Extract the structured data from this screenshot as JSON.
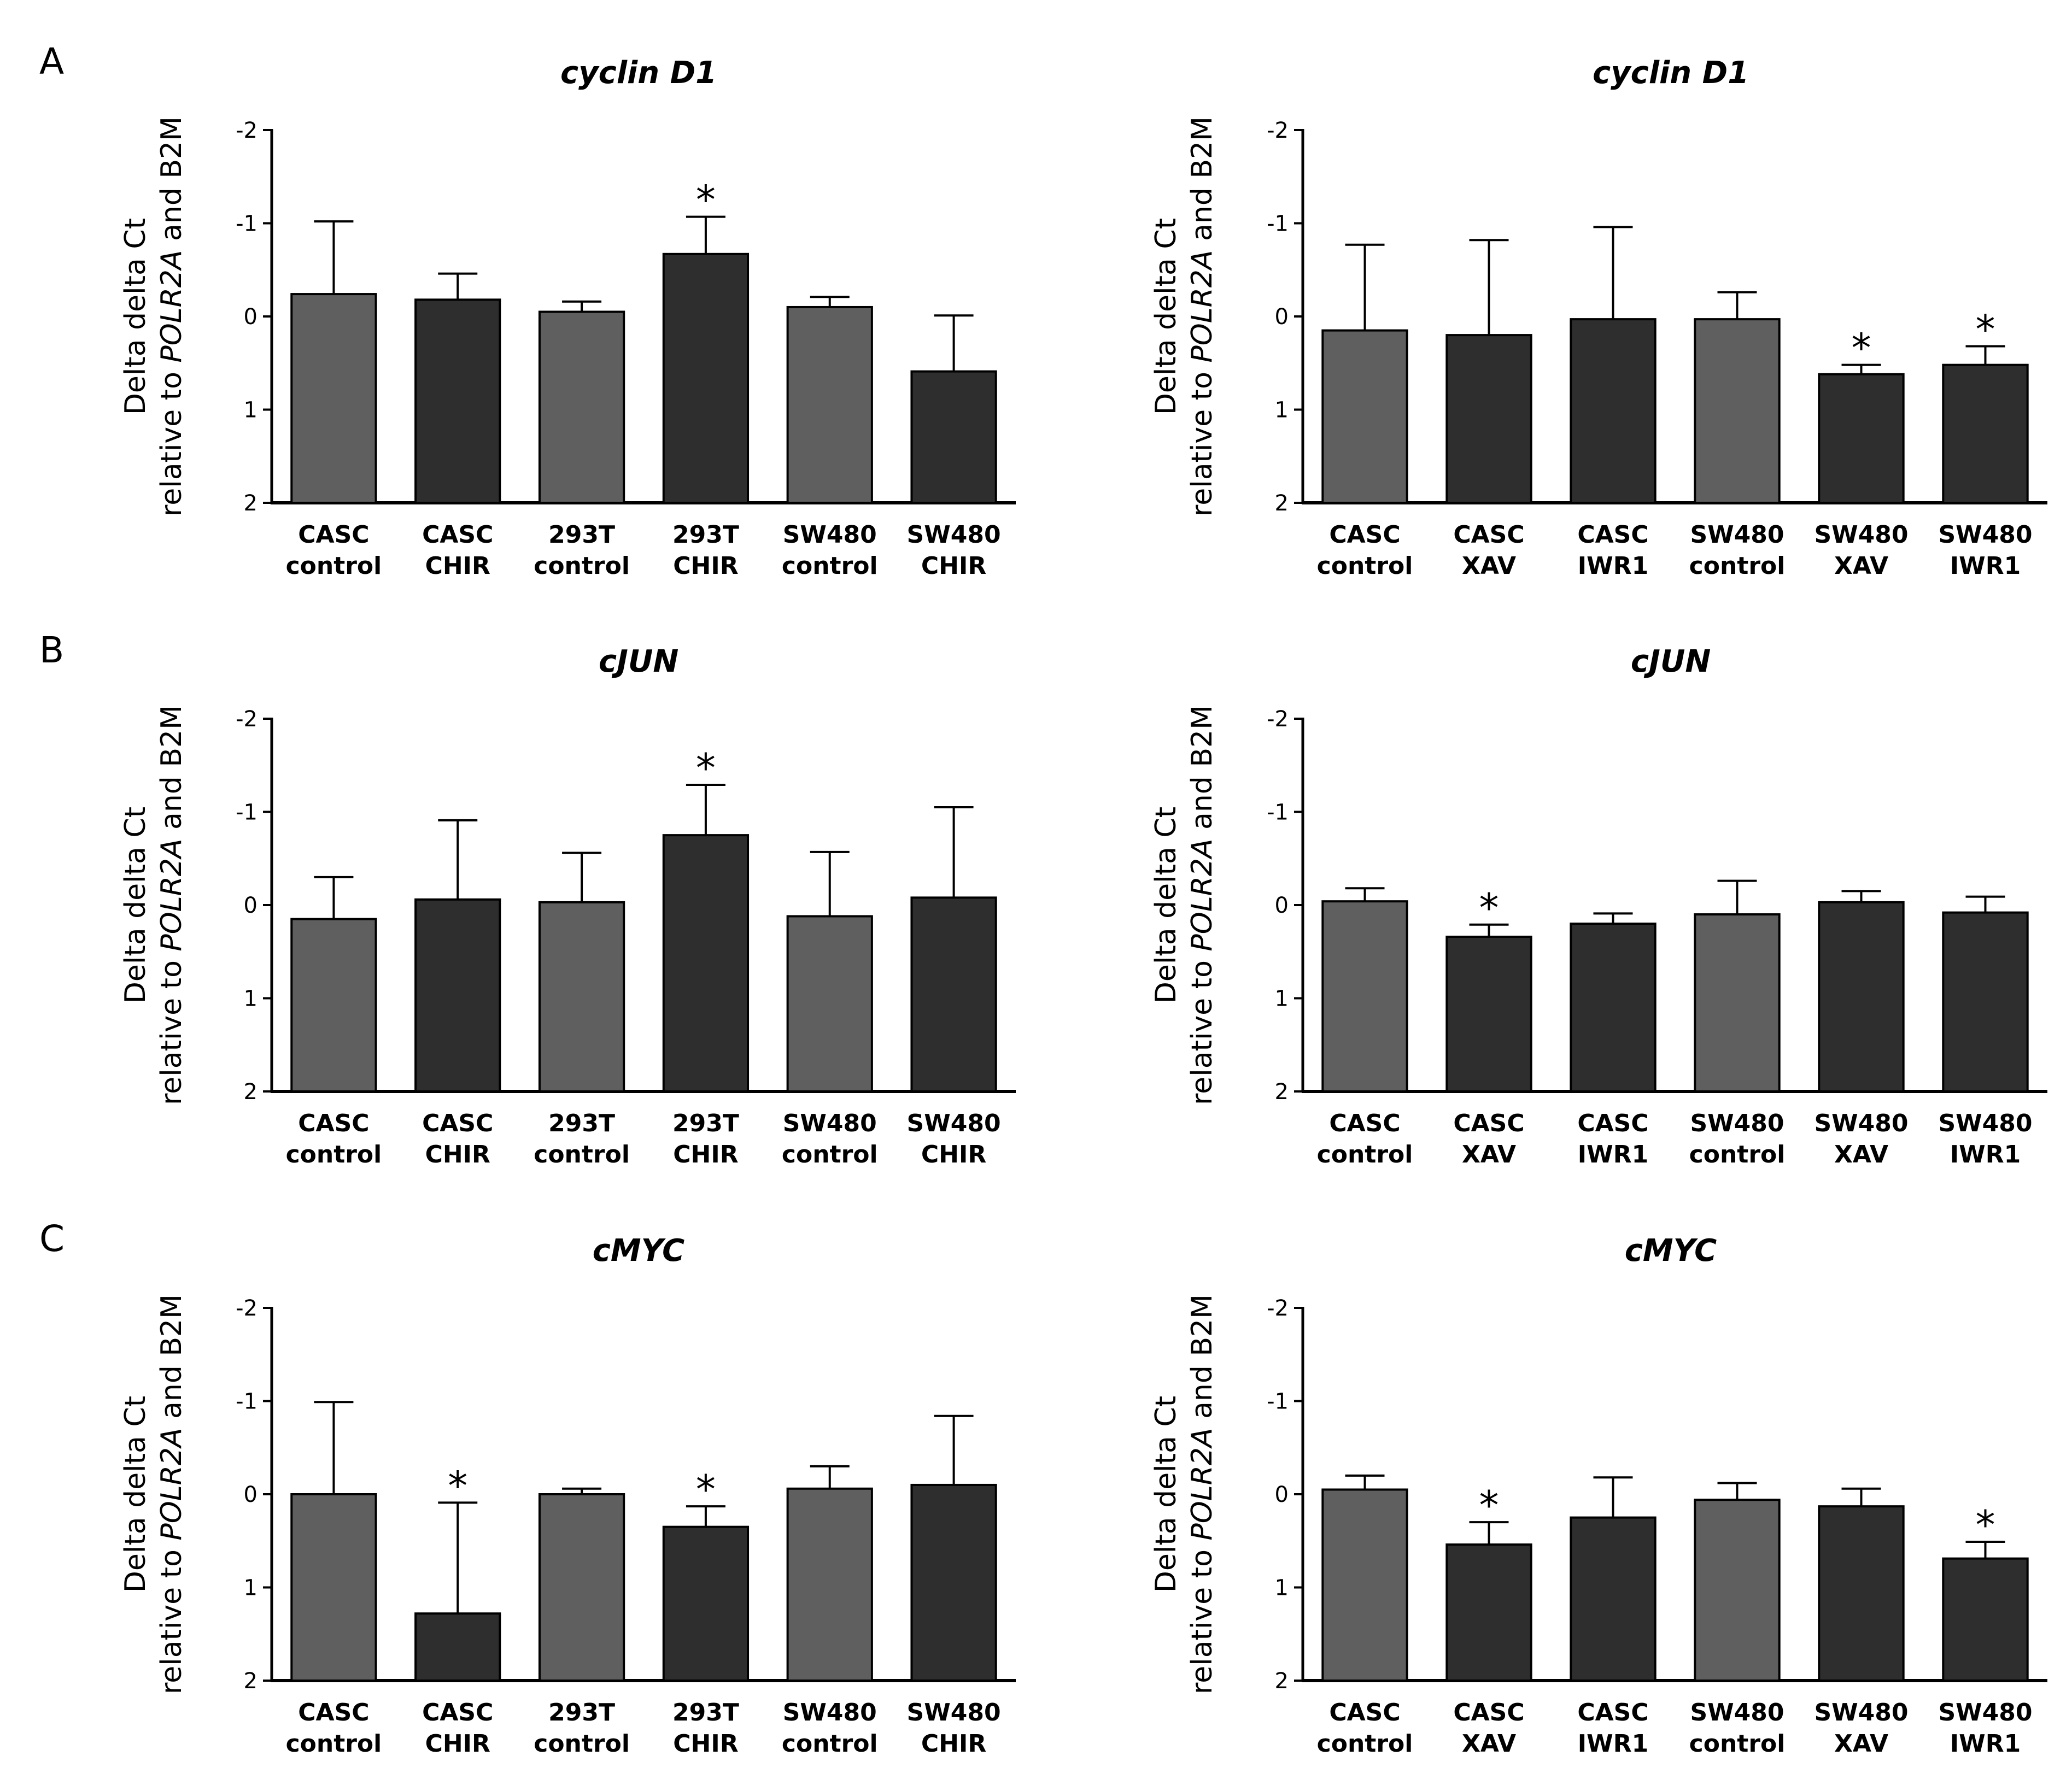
{
  "panel_letters": [
    "A",
    "B",
    "C"
  ],
  "ylabel_parts": [
    "Delta delta Ct",
    "relative to ",
    "POLR2A",
    " and B2M"
  ],
  "colors": {
    "control": "#5f5f5f",
    "treated": "#2e2e2e",
    "axis": "#000000",
    "edge": "#000000"
  },
  "chart_data": [
    {
      "type": "bar",
      "title": "cyclin D1",
      "ylim": [
        2,
        -2
      ],
      "yticks": [
        -2,
        -1,
        0,
        1,
        2
      ],
      "inverted_y": true,
      "categories": [
        [
          "CASC",
          "control"
        ],
        [
          "CASC",
          "CHIR"
        ],
        [
          "293T",
          "control"
        ],
        [
          "293T",
          "CHIR"
        ],
        [
          "SW480",
          "control"
        ],
        [
          "SW480",
          "CHIR"
        ]
      ],
      "values": [
        -0.24,
        -0.18,
        -0.05,
        -0.67,
        -0.1,
        0.59
      ],
      "errors": [
        0.78,
        0.28,
        0.11,
        0.4,
        0.11,
        0.6
      ],
      "significant": [
        false,
        false,
        false,
        true,
        false,
        false
      ],
      "bar_colors": [
        "control",
        "treated",
        "control",
        "treated",
        "control",
        "treated"
      ]
    },
    {
      "type": "bar",
      "title": "cyclin D1",
      "ylim": [
        2,
        -2
      ],
      "yticks": [
        -2,
        -1,
        0,
        1,
        2
      ],
      "inverted_y": true,
      "categories": [
        [
          "CASC",
          "control"
        ],
        [
          "CASC",
          "XAV"
        ],
        [
          "CASC",
          "IWR1"
        ],
        [
          "SW480",
          "control"
        ],
        [
          "SW480",
          "XAV"
        ],
        [
          "SW480",
          "IWR1"
        ]
      ],
      "values": [
        0.15,
        0.2,
        0.03,
        0.03,
        0.62,
        0.52
      ],
      "errors": [
        0.92,
        1.02,
        0.99,
        0.29,
        0.1,
        0.2
      ],
      "significant": [
        false,
        false,
        false,
        false,
        true,
        true
      ],
      "bar_colors": [
        "control",
        "treated",
        "treated",
        "control",
        "treated",
        "treated"
      ]
    },
    {
      "type": "bar",
      "title": "cJUN",
      "ylim": [
        2,
        -2
      ],
      "yticks": [
        -2,
        -1,
        0,
        1,
        2
      ],
      "inverted_y": true,
      "categories": [
        [
          "CASC",
          "control"
        ],
        [
          "CASC",
          "CHIR"
        ],
        [
          "293T",
          "control"
        ],
        [
          "293T",
          "CHIR"
        ],
        [
          "SW480",
          "control"
        ],
        [
          "SW480",
          "CHIR"
        ]
      ],
      "values": [
        0.15,
        -0.06,
        -0.03,
        -0.75,
        0.12,
        -0.08
      ],
      "errors": [
        0.45,
        0.85,
        0.53,
        0.54,
        0.69,
        0.97
      ],
      "significant": [
        false,
        false,
        false,
        true,
        false,
        false
      ],
      "bar_colors": [
        "control",
        "treated",
        "control",
        "treated",
        "control",
        "treated"
      ]
    },
    {
      "type": "bar",
      "title": "cJUN",
      "ylim": [
        2,
        -2
      ],
      "yticks": [
        -2,
        -1,
        0,
        1,
        2
      ],
      "inverted_y": true,
      "categories": [
        [
          "CASC",
          "control"
        ],
        [
          "CASC",
          "XAV"
        ],
        [
          "CASC",
          "IWR1"
        ],
        [
          "SW480",
          "control"
        ],
        [
          "SW480",
          "XAV"
        ],
        [
          "SW480",
          "IWR1"
        ]
      ],
      "values": [
        -0.04,
        0.34,
        0.2,
        0.1,
        -0.03,
        0.08
      ],
      "errors": [
        0.14,
        0.13,
        0.11,
        0.36,
        0.12,
        0.17
      ],
      "significant": [
        false,
        true,
        false,
        false,
        false,
        false
      ],
      "bar_colors": [
        "control",
        "treated",
        "treated",
        "control",
        "treated",
        "treated"
      ]
    },
    {
      "type": "bar",
      "title": "cMYC",
      "ylim": [
        2,
        -2
      ],
      "yticks": [
        -2,
        -1,
        0,
        1,
        2
      ],
      "inverted_y": true,
      "categories": [
        [
          "CASC",
          "control"
        ],
        [
          "CASC",
          "CHIR"
        ],
        [
          "293T",
          "control"
        ],
        [
          "293T",
          "CHIR"
        ],
        [
          "SW480",
          "control"
        ],
        [
          "SW480",
          "CHIR"
        ]
      ],
      "values": [
        0.0,
        1.28,
        0.0,
        0.35,
        -0.06,
        -0.1
      ],
      "errors": [
        0.99,
        1.19,
        0.06,
        0.22,
        0.24,
        0.74
      ],
      "significant": [
        false,
        true,
        false,
        true,
        false,
        false
      ],
      "bar_colors": [
        "control",
        "treated",
        "control",
        "treated",
        "control",
        "treated"
      ]
    },
    {
      "type": "bar",
      "title": "cMYC",
      "ylim": [
        2,
        -2
      ],
      "yticks": [
        -2,
        -1,
        0,
        1,
        2
      ],
      "inverted_y": true,
      "categories": [
        [
          "CASC",
          "control"
        ],
        [
          "CASC",
          "XAV"
        ],
        [
          "CASC",
          "IWR1"
        ],
        [
          "SW480",
          "control"
        ],
        [
          "SW480",
          "XAV"
        ],
        [
          "SW480",
          "IWR1"
        ]
      ],
      "values": [
        -0.05,
        0.54,
        0.25,
        0.06,
        0.13,
        0.69
      ],
      "errors": [
        0.15,
        0.24,
        0.43,
        0.18,
        0.19,
        0.18
      ],
      "significant": [
        false,
        true,
        false,
        false,
        false,
        true
      ],
      "bar_colors": [
        "control",
        "treated",
        "treated",
        "control",
        "treated",
        "treated"
      ]
    }
  ]
}
